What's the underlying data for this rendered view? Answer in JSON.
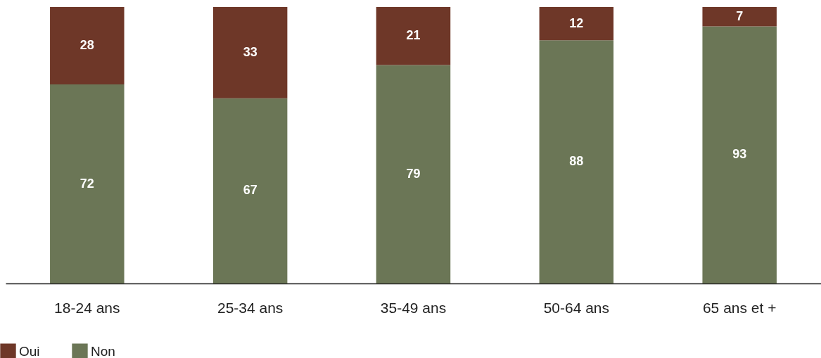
{
  "chart_data": {
    "type": "bar",
    "stacked": true,
    "categories": [
      "18-24 ans",
      "25-34 ans",
      "35-49 ans",
      "50-64 ans",
      "65 ans et +"
    ],
    "series": [
      {
        "name": "Non",
        "color": "#6b7656",
        "values": [
          72,
          67,
          79,
          88,
          93
        ]
      },
      {
        "name": "Oui",
        "color": "#6e3728",
        "values": [
          28,
          33,
          21,
          12,
          7
        ]
      }
    ],
    "ylim": [
      0,
      100
    ],
    "tick_labels": "x",
    "data_labels": true,
    "legend": "bottom left",
    "grid": false
  }
}
